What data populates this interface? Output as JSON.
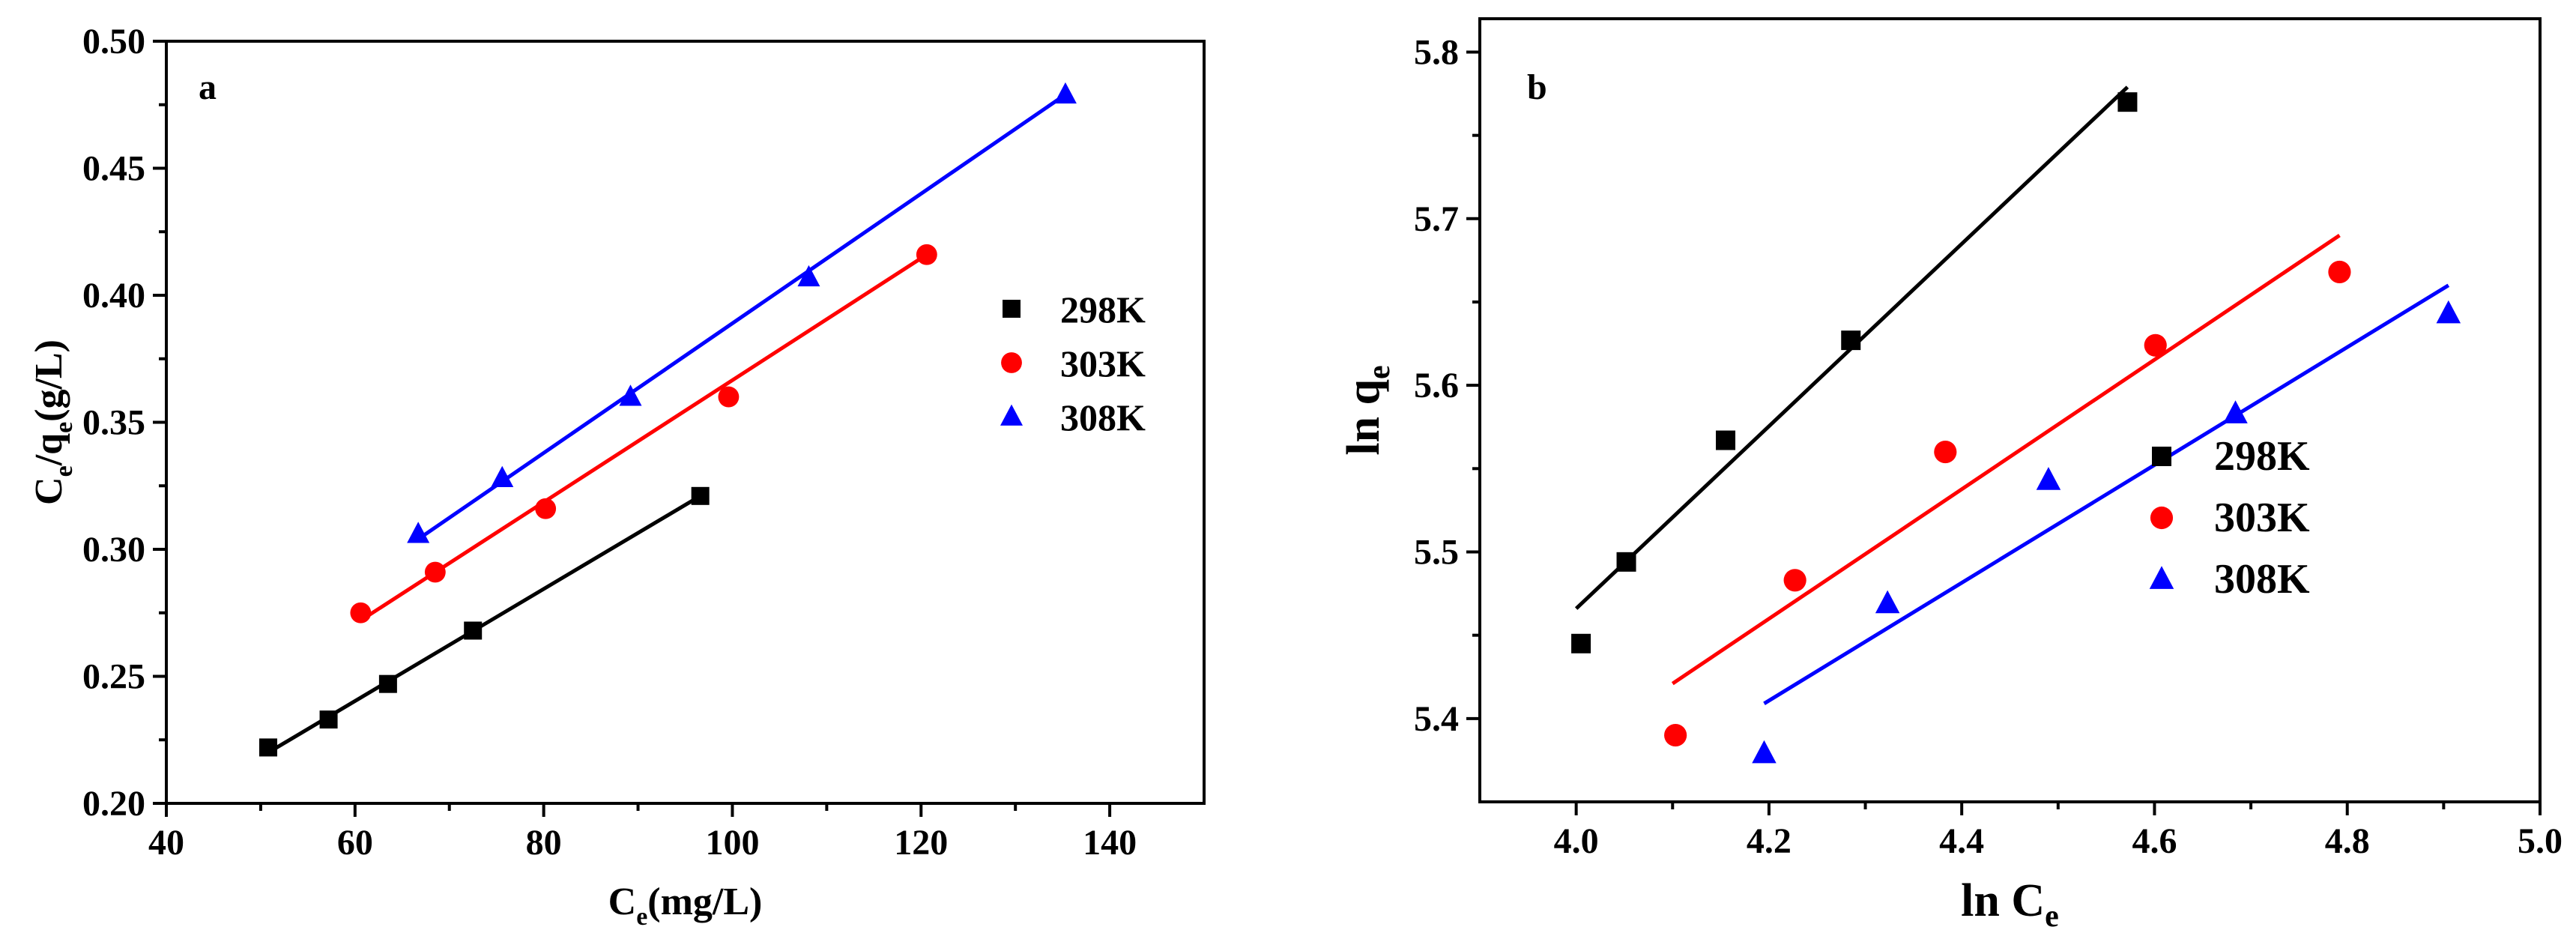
{
  "chart_data": [
    {
      "type": "scatter",
      "panel_label": "a",
      "xlabel": {
        "main": "C",
        "sub": "e",
        "rest": "(mg/L)"
      },
      "ylabel": {
        "p1": "C",
        "s1": "e",
        "p2": "/q",
        "s2": "e",
        "p3": "(g/L)"
      },
      "xlim": [
        40,
        150
      ],
      "ylim": [
        0.2,
        0.5
      ],
      "xticks": [
        40,
        60,
        80,
        100,
        120,
        140
      ],
      "yticks": [
        0.2,
        0.25,
        0.3,
        0.35,
        0.4,
        0.45,
        0.5
      ],
      "xtick_labels": [
        "40",
        "60",
        "80",
        "100",
        "120",
        "140"
      ],
      "ytick_labels": [
        "0.20",
        "0.25",
        "0.30",
        "0.35",
        "0.40",
        "0.45",
        "0.50"
      ],
      "legend_position": "right-middle",
      "grid": false,
      "series": [
        {
          "name": "298K",
          "color": "#000000",
          "marker": "square",
          "x": [
            50.8,
            57.2,
            63.5,
            72.5,
            96.6
          ],
          "y": [
            0.222,
            0.233,
            0.247,
            0.268,
            0.321
          ],
          "fit": [
            [
              50.8,
              0.22
            ],
            [
              96.6,
              0.321
            ]
          ]
        },
        {
          "name": "303K",
          "color": "#ff0000",
          "marker": "circle",
          "x": [
            60.6,
            68.5,
            80.2,
            99.6,
            120.6
          ],
          "y": [
            0.275,
            0.291,
            0.316,
            0.36,
            0.416
          ],
          "fit": [
            [
              60.6,
              0.272
            ],
            [
              120.6,
              0.416
            ]
          ]
        },
        {
          "name": "308K",
          "color": "#0000ff",
          "marker": "triangle",
          "x": [
            66.7,
            75.6,
            89.2,
            108.1,
            135.3
          ],
          "y": [
            0.306,
            0.328,
            0.36,
            0.407,
            0.479
          ],
          "fit": [
            [
              66.7,
              0.304
            ],
            [
              135.3,
              0.479
            ]
          ]
        }
      ]
    },
    {
      "type": "scatter",
      "panel_label": "b",
      "xlabel": {
        "main": "ln C",
        "sub": "e",
        "rest": ""
      },
      "ylabel": {
        "p1": "ln q",
        "s1": "e",
        "p2": "",
        "s2": "",
        "p3": ""
      },
      "xlim": [
        3.9,
        5.0
      ],
      "ylim": [
        5.35,
        5.82
      ],
      "xticks": [
        4.0,
        4.2,
        4.4,
        4.6,
        4.8,
        5.0
      ],
      "yticks": [
        5.4,
        5.5,
        5.6,
        5.7,
        5.8
      ],
      "xtick_labels": [
        "4.0",
        "4.2",
        "4.4",
        "4.6",
        "4.8",
        "5.0"
      ],
      "ytick_labels": [
        "5.4",
        "5.5",
        "5.6",
        "5.7",
        "5.8"
      ],
      "legend_position": "right-lower",
      "grid": false,
      "series": [
        {
          "name": "298K",
          "color": "#000000",
          "marker": "square",
          "x": [
            4.005,
            4.052,
            4.155,
            4.285,
            4.572
          ],
          "y": [
            5.445,
            5.494,
            5.567,
            5.627,
            5.77
          ],
          "fit": [
            [
              4.0,
              5.466
            ],
            [
              4.572,
              5.779
            ]
          ]
        },
        {
          "name": "303K",
          "color": "#ff0000",
          "marker": "circle",
          "x": [
            4.103,
            4.227,
            4.383,
            4.601,
            4.792
          ],
          "y": [
            5.39,
            5.483,
            5.56,
            5.624,
            5.668
          ],
          "fit": [
            [
              4.1,
              5.421
            ],
            [
              4.792,
              5.69
            ]
          ]
        },
        {
          "name": "308K",
          "color": "#0000ff",
          "marker": "triangle",
          "x": [
            4.195,
            4.323,
            4.49,
            4.684,
            4.905
          ],
          "y": [
            5.379,
            5.469,
            5.543,
            5.583,
            5.643
          ],
          "fit": [
            [
              4.195,
              5.409
            ],
            [
              4.905,
              5.66
            ]
          ]
        }
      ]
    }
  ]
}
